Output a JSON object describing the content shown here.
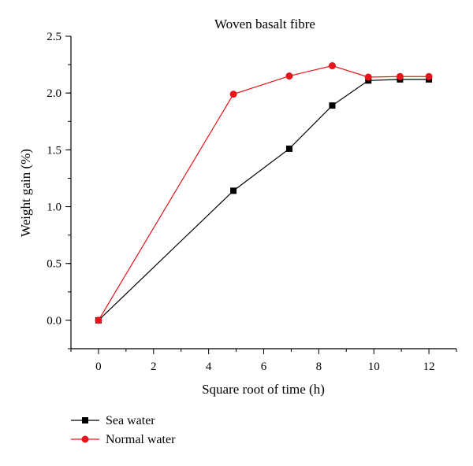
{
  "chart_data": {
    "type": "line",
    "title": "Woven basalt fibre",
    "xlabel": "Square root of time (h)",
    "ylabel": "Weight gain (%)",
    "xlim": [
      -1,
      13
    ],
    "ylim": [
      -0.25,
      2.5
    ],
    "x_ticks": [
      0,
      2,
      4,
      6,
      8,
      10,
      12
    ],
    "y_ticks": [
      0.0,
      0.5,
      1.0,
      1.5,
      2.0,
      2.5
    ],
    "x_tick_labels": [
      "0",
      "2",
      "4",
      "6",
      "8",
      "10",
      "12"
    ],
    "y_tick_labels": [
      "0.0",
      "0.5",
      "1.0",
      "1.5",
      "2.0",
      "2.5"
    ],
    "grid": false,
    "legend_position": "bottom-left, below plot",
    "series": [
      {
        "name": "Sea water",
        "marker": "square",
        "color": "#000000",
        "x": [
          0,
          4.9,
          6.93,
          8.49,
          9.8,
          10.95,
          12.0
        ],
        "y": [
          0.0,
          1.14,
          1.51,
          1.89,
          2.11,
          2.12,
          2.12
        ]
      },
      {
        "name": "Normal water",
        "marker": "circle",
        "color": "#e8141b",
        "x": [
          0,
          4.9,
          6.93,
          8.49,
          9.8,
          10.95,
          12.0
        ],
        "y": [
          0.0,
          1.99,
          2.15,
          2.24,
          2.14,
          2.145,
          2.145
        ]
      }
    ]
  }
}
